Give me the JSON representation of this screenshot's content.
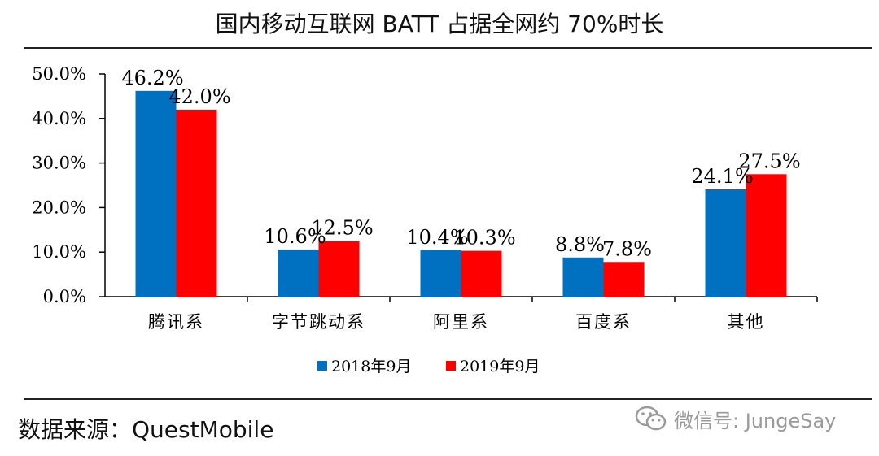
{
  "title": "国内移动互联网 BATT 占据全网约 70%时长",
  "source": "数据来源：QuestMobile",
  "watermark": {
    "icon": "wechat-icon",
    "text": "微信号: JungeSay"
  },
  "chart_data": {
    "type": "bar",
    "title": "国内移动互联网 BATT 占据全网约 70%时长",
    "categories": [
      "腾讯系",
      "字节跳动系",
      "阿里系",
      "百度系",
      "其他"
    ],
    "series": [
      {
        "name": "2018年9月",
        "values": [
          46.2,
          10.6,
          10.4,
          8.8,
          24.1
        ],
        "labels": [
          "46.2%",
          "10.6%",
          "10.4%",
          "8.8%",
          "24.1%"
        ],
        "color": "#0070C0"
      },
      {
        "name": "2019年9月",
        "values": [
          42.0,
          12.5,
          10.3,
          7.8,
          27.5
        ],
        "labels": [
          "42.0%",
          "12.5%",
          "10.3%",
          "7.8%",
          "27.5%"
        ],
        "color": "#FF0000"
      }
    ],
    "ylim": [
      0,
      50
    ],
    "yticks": [
      0,
      10,
      20,
      30,
      40,
      50
    ],
    "ytick_labels": [
      "0.0%",
      "10.0%",
      "20.0%",
      "30.0%",
      "40.0%",
      "50.0%"
    ],
    "xlabel": "",
    "ylabel": "",
    "grid": false,
    "legend": "bottom-center"
  }
}
